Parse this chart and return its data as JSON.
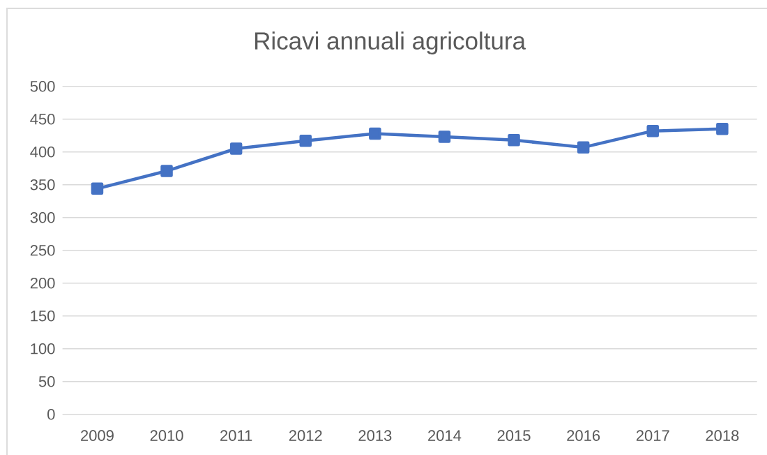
{
  "chart_data": {
    "type": "line",
    "title": "Ricavi annuali agricoltura",
    "categories": [
      "2009",
      "2010",
      "2011",
      "2012",
      "2013",
      "2014",
      "2015",
      "2016",
      "2017",
      "2018"
    ],
    "series": [
      {
        "color": "#4472c4",
        "values": [
          344,
          371,
          405,
          417,
          428,
          423,
          418,
          407,
          432,
          435
        ]
      }
    ],
    "ylim": [
      0,
      500
    ],
    "yticks": [
      0,
      50,
      100,
      150,
      200,
      250,
      300,
      350,
      400,
      450,
      500
    ],
    "grid": "y",
    "marker": "square",
    "line_style": "solid"
  }
}
